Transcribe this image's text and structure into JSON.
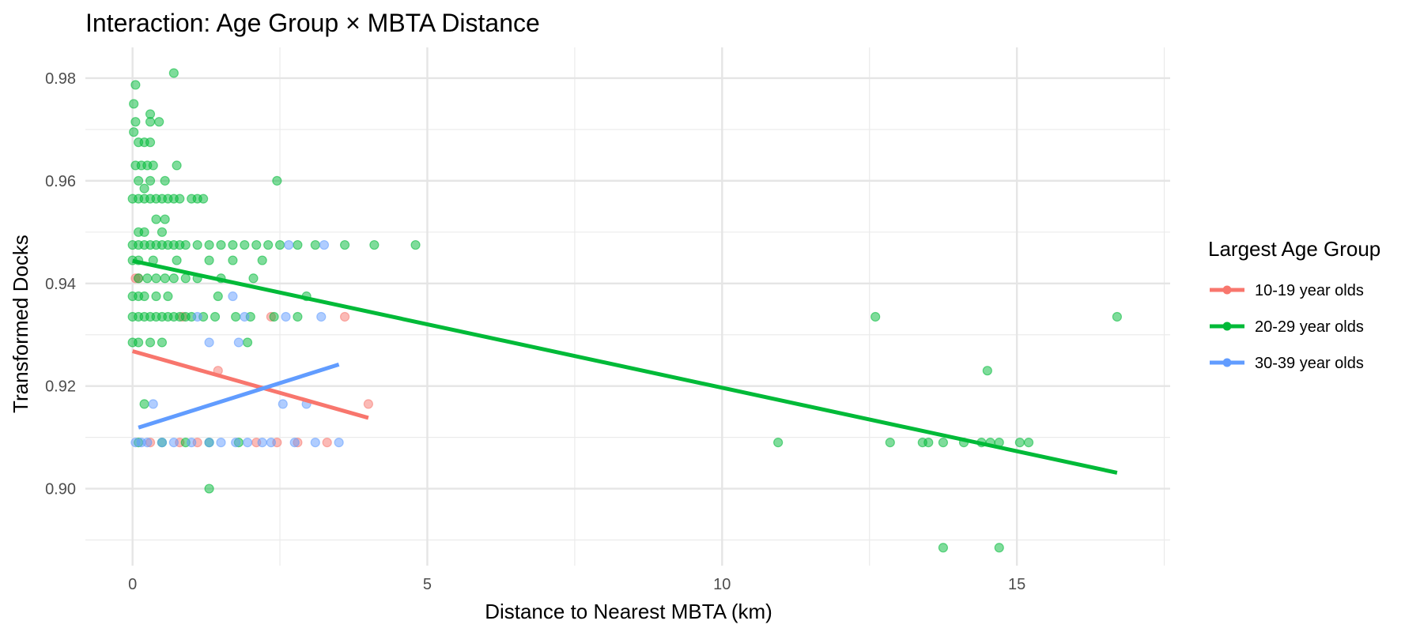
{
  "chart_data": {
    "type": "scatter",
    "title": "Interaction: Age Group × MBTA Distance",
    "xlabel": "Distance to Nearest MBTA (km)",
    "ylabel": "Transformed Docks",
    "xlim": [
      -0.8,
      17.6
    ],
    "ylim": [
      0.885,
      0.986
    ],
    "x_ticks": [
      0,
      5,
      10,
      15
    ],
    "y_ticks": [
      0.9,
      0.92,
      0.94,
      0.96,
      0.98
    ],
    "x_tick_labels": [
      "0",
      "5",
      "10",
      "15"
    ],
    "y_tick_labels": [
      "0.90",
      "0.92",
      "0.94",
      "0.96",
      "0.98"
    ],
    "grid": true,
    "legend": {
      "title": "Largest Age Group",
      "placement": "right"
    },
    "series": [
      {
        "name": "10-19 year olds",
        "color": "#F8766D",
        "points": [
          [
            0.05,
            0.941
          ],
          [
            0.1,
            0.941
          ],
          [
            0.85,
            0.9335
          ],
          [
            1.45,
            0.923
          ],
          [
            3.6,
            0.9335
          ],
          [
            4.0,
            0.9165
          ],
          [
            0.3,
            0.909
          ],
          [
            0.8,
            0.909
          ],
          [
            1.1,
            0.909
          ],
          [
            2.1,
            0.909
          ],
          [
            2.45,
            0.909
          ],
          [
            2.8,
            0.909
          ],
          [
            3.3,
            0.909
          ],
          [
            2.35,
            0.9335
          ]
        ],
        "fit": [
          [
            0.0,
            0.9268
          ],
          [
            4.0,
            0.9138
          ]
        ]
      },
      {
        "name": "20-29 year olds",
        "color": "#00BA38",
        "points": [
          [
            0.7,
            0.981
          ],
          [
            0.05,
            0.9787
          ],
          [
            0.02,
            0.975
          ],
          [
            0.3,
            0.973
          ],
          [
            0.45,
            0.9715
          ],
          [
            0.3,
            0.9715
          ],
          [
            0.05,
            0.9715
          ],
          [
            0.02,
            0.9695
          ],
          [
            0.1,
            0.9675
          ],
          [
            0.2,
            0.9675
          ],
          [
            0.3,
            0.9675
          ],
          [
            0.05,
            0.963
          ],
          [
            0.15,
            0.963
          ],
          [
            0.25,
            0.963
          ],
          [
            0.35,
            0.963
          ],
          [
            0.75,
            0.963
          ],
          [
            0.1,
            0.96
          ],
          [
            0.3,
            0.96
          ],
          [
            0.55,
            0.96
          ],
          [
            2.45,
            0.96
          ],
          [
            0.2,
            0.9585
          ],
          [
            0.0,
            0.9565
          ],
          [
            0.1,
            0.9565
          ],
          [
            0.2,
            0.9565
          ],
          [
            0.3,
            0.9565
          ],
          [
            0.4,
            0.9565
          ],
          [
            0.5,
            0.9565
          ],
          [
            0.6,
            0.9565
          ],
          [
            0.7,
            0.9565
          ],
          [
            0.8,
            0.9565
          ],
          [
            1.0,
            0.9565
          ],
          [
            1.1,
            0.9565
          ],
          [
            1.2,
            0.9565
          ],
          [
            0.4,
            0.9525
          ],
          [
            0.55,
            0.9525
          ],
          [
            0.1,
            0.95
          ],
          [
            0.2,
            0.95
          ],
          [
            0.5,
            0.95
          ],
          [
            0.0,
            0.9475
          ],
          [
            0.1,
            0.9475
          ],
          [
            0.2,
            0.9475
          ],
          [
            0.3,
            0.9475
          ],
          [
            0.4,
            0.9475
          ],
          [
            0.5,
            0.9475
          ],
          [
            0.6,
            0.9475
          ],
          [
            0.7,
            0.9475
          ],
          [
            0.8,
            0.9475
          ],
          [
            0.9,
            0.9475
          ],
          [
            1.1,
            0.9475
          ],
          [
            1.3,
            0.9475
          ],
          [
            1.5,
            0.9475
          ],
          [
            1.7,
            0.9475
          ],
          [
            1.9,
            0.9475
          ],
          [
            2.1,
            0.9475
          ],
          [
            2.3,
            0.9475
          ],
          [
            2.5,
            0.9475
          ],
          [
            2.8,
            0.9475
          ],
          [
            3.1,
            0.9475
          ],
          [
            3.6,
            0.9475
          ],
          [
            4.1,
            0.9475
          ],
          [
            4.8,
            0.9475
          ],
          [
            0.0,
            0.9445
          ],
          [
            0.1,
            0.9445
          ],
          [
            0.35,
            0.9445
          ],
          [
            0.75,
            0.9445
          ],
          [
            1.3,
            0.9445
          ],
          [
            1.7,
            0.9445
          ],
          [
            2.2,
            0.9445
          ],
          [
            0.1,
            0.941
          ],
          [
            0.25,
            0.941
          ],
          [
            0.4,
            0.941
          ],
          [
            0.55,
            0.941
          ],
          [
            0.7,
            0.941
          ],
          [
            0.9,
            0.941
          ],
          [
            1.1,
            0.941
          ],
          [
            1.5,
            0.941
          ],
          [
            2.05,
            0.941
          ],
          [
            0.0,
            0.9375
          ],
          [
            0.1,
            0.9375
          ],
          [
            0.2,
            0.9375
          ],
          [
            0.4,
            0.9375
          ],
          [
            0.6,
            0.9375
          ],
          [
            1.45,
            0.9375
          ],
          [
            2.95,
            0.9375
          ],
          [
            0.0,
            0.9335
          ],
          [
            0.1,
            0.9335
          ],
          [
            0.2,
            0.9335
          ],
          [
            0.3,
            0.9335
          ],
          [
            0.4,
            0.9335
          ],
          [
            0.5,
            0.9335
          ],
          [
            0.6,
            0.9335
          ],
          [
            0.7,
            0.9335
          ],
          [
            0.8,
            0.9335
          ],
          [
            0.9,
            0.9335
          ],
          [
            1.0,
            0.9335
          ],
          [
            1.2,
            0.9335
          ],
          [
            1.4,
            0.9335
          ],
          [
            1.75,
            0.9335
          ],
          [
            2.0,
            0.9335
          ],
          [
            2.4,
            0.9335
          ],
          [
            2.8,
            0.9335
          ],
          [
            12.6,
            0.9335
          ],
          [
            16.7,
            0.9335
          ],
          [
            0.0,
            0.9285
          ],
          [
            0.1,
            0.9285
          ],
          [
            0.3,
            0.9285
          ],
          [
            0.5,
            0.9285
          ],
          [
            1.95,
            0.9285
          ],
          [
            0.2,
            0.9165
          ],
          [
            14.5,
            0.923
          ],
          [
            10.95,
            0.909
          ],
          [
            12.85,
            0.909
          ],
          [
            13.4,
            0.909
          ],
          [
            13.5,
            0.909
          ],
          [
            13.75,
            0.909
          ],
          [
            14.1,
            0.909
          ],
          [
            14.4,
            0.909
          ],
          [
            14.55,
            0.909
          ],
          [
            14.7,
            0.909
          ],
          [
            15.05,
            0.909
          ],
          [
            15.2,
            0.909
          ],
          [
            0.1,
            0.909
          ],
          [
            0.5,
            0.909
          ],
          [
            0.9,
            0.909
          ],
          [
            1.3,
            0.909
          ],
          [
            1.8,
            0.909
          ],
          [
            1.3,
            0.9
          ],
          [
            13.75,
            0.8885
          ],
          [
            14.7,
            0.8885
          ]
        ],
        "fit": [
          [
            0.0,
            0.9444
          ],
          [
            16.7,
            0.9031
          ]
        ]
      },
      {
        "name": "30-39 year olds",
        "color": "#619CFF",
        "points": [
          [
            0.05,
            0.909
          ],
          [
            0.15,
            0.909
          ],
          [
            0.25,
            0.909
          ],
          [
            0.5,
            0.909
          ],
          [
            0.7,
            0.909
          ],
          [
            1.0,
            0.909
          ],
          [
            1.3,
            0.909
          ],
          [
            1.5,
            0.909
          ],
          [
            1.75,
            0.909
          ],
          [
            1.95,
            0.909
          ],
          [
            2.2,
            0.909
          ],
          [
            2.35,
            0.909
          ],
          [
            2.75,
            0.909
          ],
          [
            3.1,
            0.909
          ],
          [
            3.5,
            0.909
          ],
          [
            0.35,
            0.9165
          ],
          [
            2.55,
            0.9165
          ],
          [
            2.95,
            0.9165
          ],
          [
            1.3,
            0.9285
          ],
          [
            1.8,
            0.9285
          ],
          [
            1.1,
            0.9335
          ],
          [
            1.9,
            0.9335
          ],
          [
            2.6,
            0.9335
          ],
          [
            3.2,
            0.9335
          ],
          [
            1.7,
            0.9375
          ],
          [
            2.65,
            0.9475
          ],
          [
            3.25,
            0.9475
          ]
        ],
        "fit": [
          [
            0.1,
            0.9119
          ],
          [
            3.5,
            0.9242
          ]
        ]
      }
    ]
  }
}
